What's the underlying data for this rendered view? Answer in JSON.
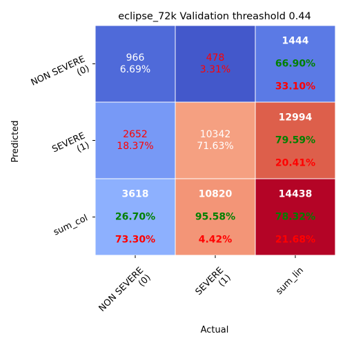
{
  "chart_data": {
    "type": "heatmap",
    "title": "eclipse_72k Validation threashold 0.44",
    "xlabel": "Actual",
    "ylabel": "Predicted",
    "x_tick_labels": [
      [
        "NON SEVERE",
        "(0)"
      ],
      [
        "SEVERE",
        "(1)"
      ],
      [
        "sum_lin"
      ]
    ],
    "y_tick_labels": [
      [
        "NON SEVERE",
        "(0)"
      ],
      [
        "SEVERE",
        "(1)"
      ],
      [
        "sum_col"
      ]
    ],
    "colormap": "coolwarm",
    "cell_colors": [
      [
        "#4f6ad9",
        "#4358cb",
        "#5b7ae5"
      ],
      [
        "#7799f6",
        "#f5a081",
        "#dd5f4b"
      ],
      [
        "#8db0fe",
        "#f39577",
        "#b40426"
      ]
    ],
    "cells": [
      [
        {
          "lines": [
            {
              "text": "966",
              "color": "#ffffff",
              "bold": false
            },
            {
              "text": "6.69%",
              "color": "#ffffff",
              "bold": false
            }
          ]
        },
        {
          "lines": [
            {
              "text": "478",
              "color": "#ff0000",
              "bold": false
            },
            {
              "text": "3.31%",
              "color": "#ff0000",
              "bold": false
            }
          ]
        },
        {
          "lines": [
            {
              "text": "1444",
              "color": "#ffffff",
              "bold": true
            },
            {
              "text": "66.90%",
              "color": "#008000",
              "bold": true
            },
            {
              "text": "33.10%",
              "color": "#ff0000",
              "bold": true
            }
          ]
        }
      ],
      [
        {
          "lines": [
            {
              "text": "2652",
              "color": "#ff0000",
              "bold": false
            },
            {
              "text": "18.37%",
              "color": "#ff0000",
              "bold": false
            }
          ]
        },
        {
          "lines": [
            {
              "text": "10342",
              "color": "#ffffff",
              "bold": false
            },
            {
              "text": "71.63%",
              "color": "#ffffff",
              "bold": false
            }
          ]
        },
        {
          "lines": [
            {
              "text": "12994",
              "color": "#ffffff",
              "bold": true
            },
            {
              "text": "79.59%",
              "color": "#008000",
              "bold": true
            },
            {
              "text": "20.41%",
              "color": "#ff0000",
              "bold": true
            }
          ]
        }
      ],
      [
        {
          "lines": [
            {
              "text": "3618",
              "color": "#ffffff",
              "bold": true
            },
            {
              "text": "26.70%",
              "color": "#008000",
              "bold": true
            },
            {
              "text": "73.30%",
              "color": "#ff0000",
              "bold": true
            }
          ]
        },
        {
          "lines": [
            {
              "text": "10820",
              "color": "#ffffff",
              "bold": true
            },
            {
              "text": "95.58%",
              "color": "#008000",
              "bold": true
            },
            {
              "text": "4.42%",
              "color": "#ff0000",
              "bold": true
            }
          ]
        },
        {
          "lines": [
            {
              "text": "14438",
              "color": "#ffffff",
              "bold": true
            },
            {
              "text": "78.32%",
              "color": "#008000",
              "bold": true
            },
            {
              "text": "21.68%",
              "color": "#ff0000",
              "bold": true
            }
          ]
        }
      ]
    ]
  }
}
